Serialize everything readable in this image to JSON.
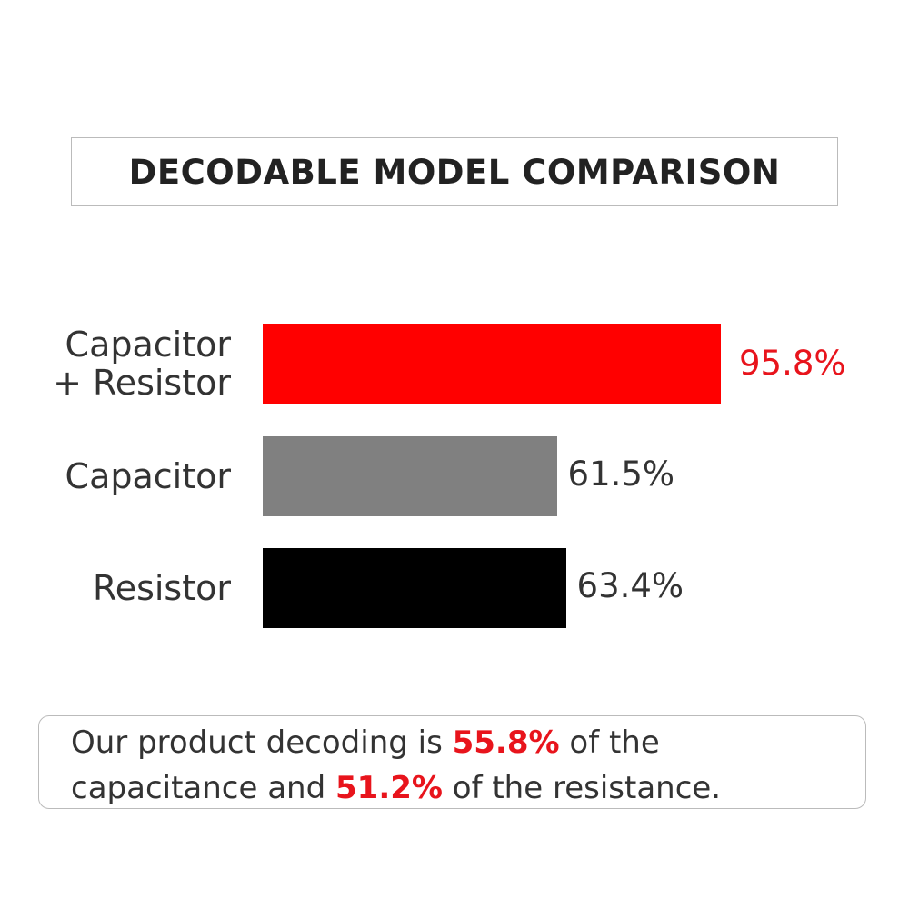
{
  "chart_data": {
    "type": "bar",
    "orientation": "horizontal",
    "title": "DECODABLE MODEL COMPARISON",
    "categories": [
      "Capacitor\n+ Resistor",
      "Capacitor",
      "Resistor"
    ],
    "values": [
      95.8,
      61.5,
      63.4
    ],
    "value_labels": [
      "95.8%",
      "61.5%",
      "63.4%"
    ],
    "colors": [
      "#ff0000",
      "#808080",
      "#000000"
    ],
    "value_label_colors": [
      "#e8141c",
      "#333333",
      "#333333"
    ]
  },
  "note": {
    "segments": [
      {
        "text": "Our product decoding is ",
        "highlight": false
      },
      {
        "text": "55.8%",
        "highlight": true
      },
      {
        "text": " of the capacitance and ",
        "highlight": false
      },
      {
        "text": "51.2%",
        "highlight": true
      },
      {
        "text": " of the resistance.",
        "highlight": false
      }
    ]
  }
}
